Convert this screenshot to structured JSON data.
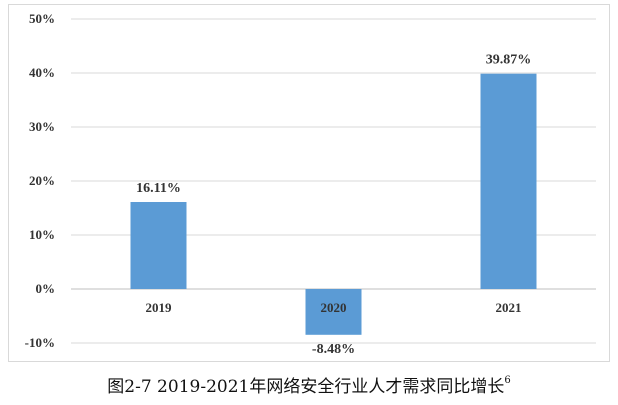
{
  "chart_data": {
    "type": "bar",
    "categories": [
      "2019",
      "2020",
      "2021"
    ],
    "values": [
      16.11,
      -8.48,
      39.87
    ],
    "data_labels": [
      "16.11%",
      "-8.48%",
      "39.87%"
    ],
    "title": "",
    "xlabel": "",
    "ylabel": "",
    "ylim": [
      -10,
      50
    ],
    "yticks": [
      "50%",
      "40%",
      "30%",
      "20%",
      "10%",
      "0%",
      "-10%"
    ],
    "grid": true,
    "legend": "none",
    "bar_color": "#5b9bd5"
  },
  "caption": {
    "text": "图2-7 2019-2021年网络安全行业人才需求同比增长",
    "footnote": "6"
  }
}
